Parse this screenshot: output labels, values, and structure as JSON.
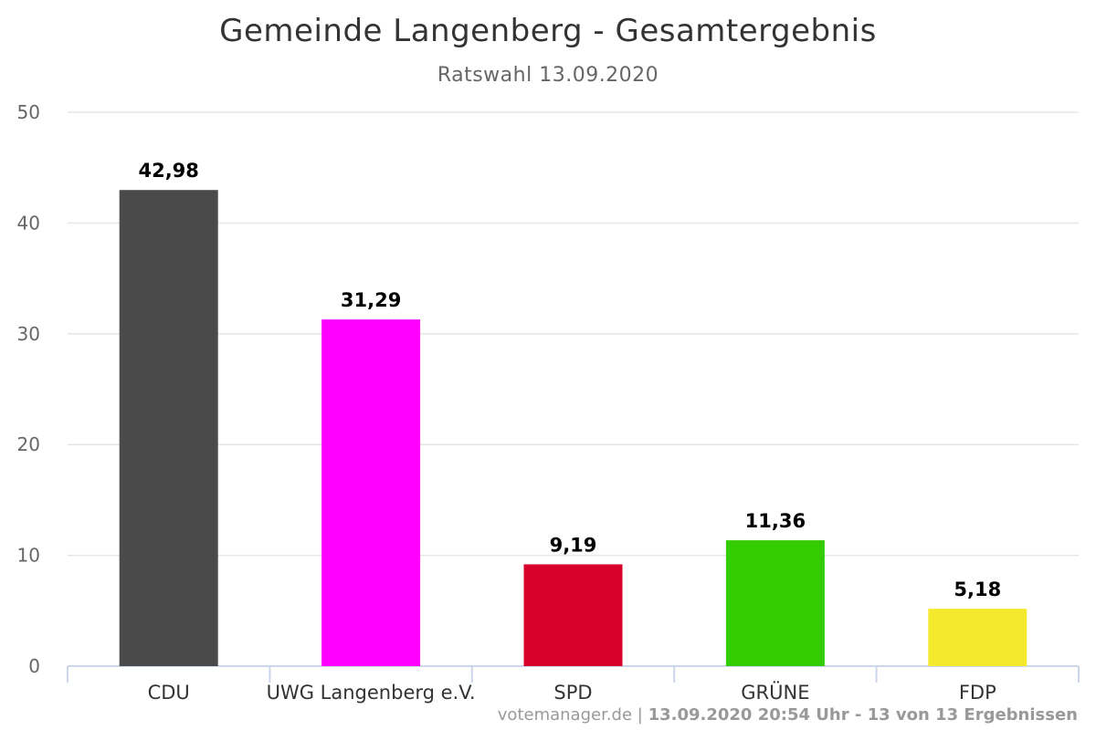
{
  "chart_data": {
    "type": "bar",
    "title": "Gemeinde Langenberg - Gesamtergebnis",
    "subtitle": "Ratswahl 13.09.2020",
    "categories": [
      "CDU",
      "UWG Langenberg e.V.",
      "SPD",
      "GRÜNE",
      "FDP"
    ],
    "values": [
      42.98,
      31.29,
      9.19,
      11.36,
      5.18
    ],
    "value_labels": [
      "42,98",
      "31,29",
      "9,19",
      "11,36",
      "5,18"
    ],
    "colors": [
      "#4a4a4a",
      "#ff00ff",
      "#d6002a",
      "#33cc00",
      "#f5e92e"
    ],
    "ylim": [
      0,
      50
    ],
    "yticks": [
      0,
      10,
      20,
      30,
      40,
      50
    ],
    "xlabel": "",
    "ylabel": "",
    "grid": true,
    "legend": "none"
  },
  "credits": {
    "source": "votemanager.de",
    "separator": " | ",
    "status": "13.09.2020 20:54 Uhr - 13 von 13 Ergebnissen"
  }
}
